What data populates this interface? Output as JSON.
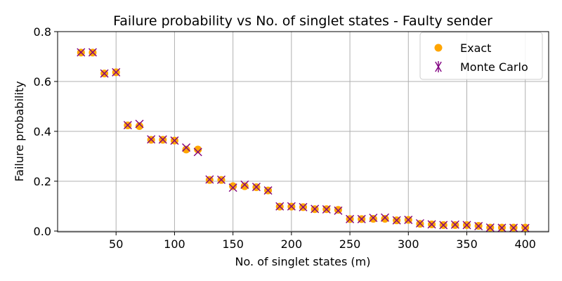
{
  "chart_data": {
    "type": "scatter",
    "title": "Failure probability vs No. of singlet states - Faulty sender",
    "xlabel": "No. of singlet states (m)",
    "ylabel": "Failure probability",
    "xlim": [
      0,
      420
    ],
    "ylim": [
      -0.003,
      0.8
    ],
    "xticks": [
      50,
      100,
      150,
      200,
      250,
      300,
      350,
      400
    ],
    "yticks": [
      0.0,
      0.2,
      0.4,
      0.6,
      0.8
    ],
    "xtick_labels": [
      "50",
      "100",
      "150",
      "200",
      "250",
      "300",
      "350",
      "400"
    ],
    "ytick_labels": [
      "0.0",
      "0.2",
      "0.4",
      "0.6",
      "0.8"
    ],
    "grid": true,
    "legend_position": "top-right",
    "x": [
      20,
      30,
      40,
      50,
      60,
      70,
      80,
      90,
      100,
      110,
      120,
      130,
      140,
      150,
      160,
      170,
      180,
      190,
      200,
      210,
      220,
      230,
      240,
      250,
      260,
      270,
      280,
      290,
      300,
      310,
      320,
      330,
      340,
      350,
      360,
      370,
      380,
      390,
      400
    ],
    "series": [
      {
        "name": "Exact",
        "marker": "circle",
        "color": "#FFA500",
        "values": [
          0.716,
          0.716,
          0.632,
          0.637,
          0.424,
          0.421,
          0.366,
          0.366,
          0.363,
          0.327,
          0.327,
          0.205,
          0.205,
          0.18,
          0.18,
          0.176,
          0.163,
          0.098,
          0.098,
          0.096,
          0.088,
          0.088,
          0.085,
          0.048,
          0.048,
          0.049,
          0.049,
          0.043,
          0.045,
          0.029,
          0.027,
          0.024,
          0.024,
          0.024,
          0.021,
          0.014,
          0.014,
          0.014,
          0.014
        ]
      },
      {
        "name": "Monte Carlo",
        "marker": "x",
        "color": "#800080",
        "values": [
          0.717,
          0.717,
          0.632,
          0.637,
          0.425,
          0.43,
          0.368,
          0.367,
          0.363,
          0.335,
          0.317,
          0.207,
          0.206,
          0.174,
          0.186,
          0.177,
          0.163,
          0.099,
          0.099,
          0.096,
          0.089,
          0.087,
          0.082,
          0.048,
          0.048,
          0.053,
          0.054,
          0.043,
          0.045,
          0.031,
          0.027,
          0.024,
          0.026,
          0.024,
          0.02,
          0.014,
          0.013,
          0.013,
          0.012
        ]
      }
    ]
  }
}
